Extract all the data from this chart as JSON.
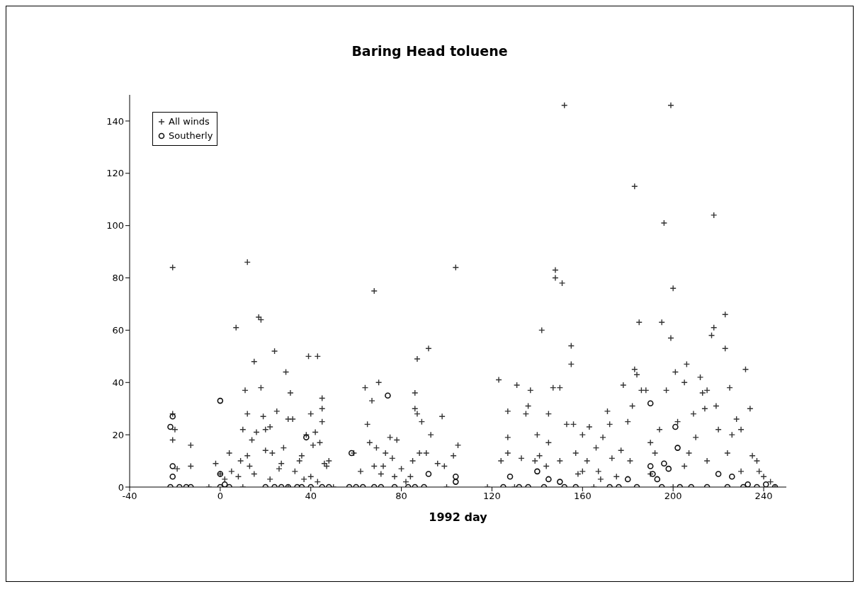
{
  "chart_data": {
    "type": "scatter",
    "title": "Baring Head toluene",
    "xlabel": "1992 day",
    "xlim": [
      -40,
      250
    ],
    "xticks": [
      -40,
      0,
      40,
      80,
      120,
      160,
      200,
      240
    ],
    "ylim": [
      0,
      150
    ],
    "yticks": [
      0,
      20,
      40,
      60,
      80,
      100,
      120,
      140
    ],
    "grid": false,
    "legend": "top left",
    "series": [
      {
        "name": "All winds",
        "color": "#333333",
        "marker": "cross",
        "x": [
          -21,
          -21,
          -20,
          -21,
          -19,
          -13,
          -13,
          -2,
          0,
          2,
          4,
          7,
          10,
          11,
          12,
          12,
          14,
          15,
          16,
          17,
          18,
          18,
          19,
          20,
          22,
          23,
          24,
          25,
          27,
          29,
          30,
          31,
          32,
          35,
          37,
          38,
          39,
          40,
          41,
          42,
          43,
          44,
          45,
          45,
          45,
          46,
          47,
          48,
          5,
          8,
          9,
          12,
          13,
          15,
          20,
          22,
          26,
          28,
          33,
          36,
          40,
          43,
          59,
          64,
          65,
          66,
          67,
          68,
          69,
          70,
          72,
          73,
          75,
          76,
          78,
          80,
          82,
          85,
          86,
          86,
          87,
          87,
          88,
          89,
          91,
          92,
          93,
          96,
          98,
          99,
          104,
          105,
          103,
          62,
          68,
          71,
          77,
          84,
          123,
          124,
          127,
          127,
          127,
          131,
          133,
          135,
          136,
          137,
          139,
          140,
          141,
          142,
          144,
          145,
          147,
          148,
          148,
          150,
          151,
          152,
          153,
          155,
          155,
          156,
          157,
          158,
          160,
          162,
          163,
          166,
          167,
          169,
          171,
          172,
          173,
          175,
          177,
          178,
          180,
          181,
          182,
          183,
          183,
          184,
          185,
          186,
          188,
          190,
          192,
          194,
          195,
          196,
          197,
          199,
          199,
          200,
          201,
          202,
          205,
          206,
          207,
          209,
          210,
          212,
          213,
          214,
          215,
          217,
          218,
          218,
          219,
          220,
          223,
          223,
          224,
          225,
          226,
          228,
          230,
          232,
          234,
          235,
          237,
          238,
          240,
          243,
          145,
          150,
          160,
          190,
          205,
          230,
          215,
          168,
          -5,
          10,
          30,
          50,
          100,
          118,
          130,
          165,
          200,
          245
        ],
        "values": [
          84,
          28,
          22,
          18,
          7,
          16,
          8,
          9,
          5,
          3,
          13,
          61,
          22,
          37,
          86,
          28,
          18,
          48,
          21,
          65,
          64,
          38,
          27,
          22,
          23,
          13,
          52,
          29,
          9,
          44,
          26,
          36,
          26,
          10,
          3,
          20,
          50,
          28,
          16,
          21,
          50,
          17,
          25,
          30,
          34,
          9,
          8,
          10,
          6,
          4,
          10,
          12,
          8,
          5,
          14,
          3,
          7,
          15,
          6,
          12,
          4,
          2,
          13,
          38,
          24,
          17,
          33,
          75,
          15,
          40,
          8,
          13,
          19,
          11,
          18,
          7,
          2,
          10,
          36,
          30,
          49,
          28,
          13,
          25,
          13,
          53,
          20,
          9,
          27,
          8,
          84,
          16,
          12,
          6,
          8,
          5,
          4,
          4,
          41,
          10,
          29,
          19,
          13,
          39,
          11,
          28,
          31,
          37,
          10,
          20,
          12,
          60,
          8,
          28,
          38,
          80,
          83,
          38,
          78,
          146,
          24,
          47,
          54,
          24,
          13,
          5,
          20,
          10,
          23,
          15,
          6,
          19,
          29,
          24,
          11,
          4,
          14,
          39,
          25,
          10,
          31,
          115,
          45,
          43,
          63,
          37,
          37,
          17,
          13,
          22,
          63,
          101,
          37,
          146,
          57,
          76,
          44,
          25,
          40,
          47,
          13,
          28,
          19,
          42,
          36,
          30,
          37,
          58,
          104,
          61,
          31,
          22,
          66,
          53,
          13,
          38,
          20,
          26,
          22,
          45,
          30,
          12,
          10,
          6,
          4,
          2,
          17,
          10,
          6,
          5,
          8,
          6,
          10,
          3,
          0,
          0,
          0,
          0,
          0,
          0,
          0,
          0,
          0,
          0
        ]
      },
      {
        "name": "Southerly",
        "color": "#111111",
        "marker": "circle",
        "x": [
          -21,
          -22,
          -21,
          -21,
          -22,
          -18,
          -15,
          -13,
          0,
          0,
          0,
          2,
          4,
          20,
          24,
          27,
          30,
          34,
          36,
          38,
          40,
          45,
          48,
          58,
          57,
          60,
          63,
          68,
          71,
          74,
          77,
          83,
          86,
          90,
          92,
          104,
          104,
          125,
          128,
          132,
          136,
          140,
          143,
          145,
          150,
          152,
          157,
          172,
          176,
          180,
          184,
          190,
          190,
          191,
          193,
          195,
          196,
          198,
          201,
          202,
          203,
          208,
          215,
          220,
          224,
          226,
          231,
          233,
          237,
          241,
          245
        ],
        "values": [
          27,
          23,
          8,
          4,
          0,
          0,
          0,
          0,
          33,
          0,
          5,
          1,
          0,
          0,
          0,
          0,
          0,
          0,
          0,
          19,
          0,
          0,
          0,
          13,
          0,
          0,
          0,
          0,
          0,
          35,
          0,
          0,
          0,
          0,
          5,
          4,
          2,
          0,
          4,
          0,
          0,
          6,
          0,
          3,
          2,
          0,
          0,
          0,
          0,
          3,
          0,
          32,
          8,
          5,
          3,
          0,
          9,
          7,
          23,
          15,
          0,
          0,
          0,
          5,
          0,
          4,
          0,
          1,
          0,
          1,
          0
        ]
      }
    ]
  }
}
